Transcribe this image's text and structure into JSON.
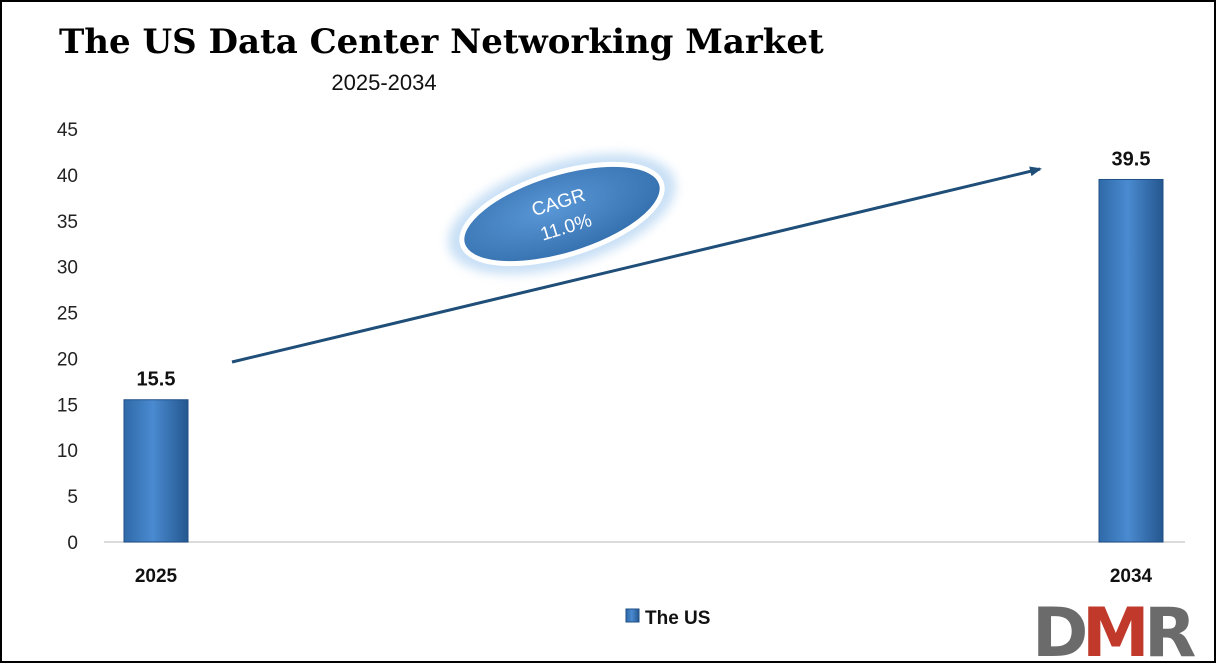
{
  "chart_data": {
    "type": "bar",
    "title": "The US Data Center Networking Market",
    "subtitle": "2025-2034",
    "categories": [
      "2025",
      "2034"
    ],
    "series": [
      {
        "name": "The US",
        "values": [
          15.5,
          39.5
        ],
        "data_labels": [
          "15.5",
          "39.5"
        ]
      }
    ],
    "ylim": [
      0,
      45
    ],
    "yticks": [
      0,
      5,
      10,
      15,
      20,
      25,
      30,
      35,
      40,
      45
    ],
    "ytick_labels": [
      "0",
      "5",
      "10",
      "15",
      "20",
      "25",
      "30",
      "35",
      "40",
      "45"
    ],
    "grid": false,
    "legend_position": "bottom",
    "annotation": {
      "line1": "CAGR",
      "line2": "11.0%"
    },
    "colors": {
      "bar": "#3a78bd",
      "bar_dark": "#1f4f86",
      "arrow": "#1f4e79",
      "ellipse": "#3f7fc0"
    }
  },
  "logo": {
    "text": "DMR",
    "letters": [
      "D",
      "M",
      "R"
    ],
    "colors": [
      "#6b6b6b",
      "#c0392b",
      "#6b6b6b"
    ]
  }
}
